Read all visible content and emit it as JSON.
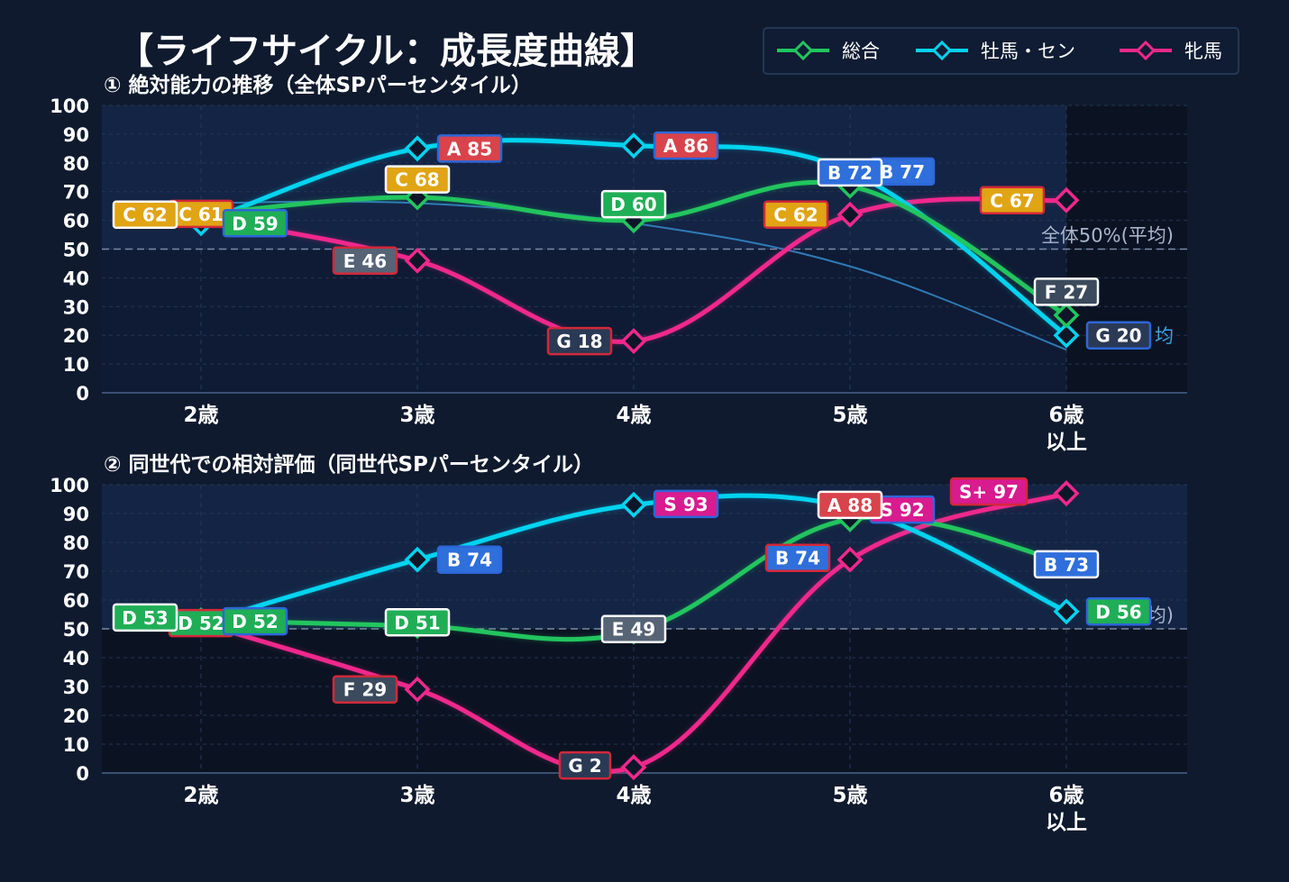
{
  "title": "【ライフサイクル：成長度曲線】",
  "legend": {
    "items": [
      {
        "name": "総合",
        "color": "#22c55e"
      },
      {
        "name": "牡馬・セン",
        "color": "#00d4f0"
      },
      {
        "name": "牝馬",
        "color": "#f0288c"
      }
    ]
  },
  "colors": {
    "background": "#0f1a2e",
    "plot_bg": "#0b1322",
    "plot_band": "#16284a",
    "overall": "#22c55e",
    "colt": "#00d4f0",
    "filly": "#f0288c",
    "rank_S": "#d81b8f",
    "rank_A": "#d9434b",
    "rank_B": "#2f6fdc",
    "rank_C": "#e0a414",
    "rank_D": "#1fae56",
    "rank_E": "#566476",
    "rank_F": "#3b4a5c",
    "rank_G": "#2a3a55"
  },
  "chart_data": [
    {
      "type": "line",
      "subtitle": "① 絶対能力の推移（全体SPパーセンタイル）",
      "categories": [
        "2歳",
        "3歳",
        "4歳",
        "5歳",
        "6歳\n以上"
      ],
      "ylim": [
        0,
        100
      ],
      "yticks": [
        0,
        10,
        20,
        30,
        40,
        50,
        60,
        70,
        80,
        90,
        100
      ],
      "reference_line": {
        "value": 50,
        "label": "全体50%(平均)"
      },
      "reference_curve": [
        66,
        66,
        59,
        44,
        15
      ],
      "partial_label": "均",
      "series": [
        {
          "name": "総合",
          "values": [
            62,
            68,
            60,
            72,
            27
          ],
          "labels": [
            "C 62",
            "C 68",
            "D 60",
            "B 72",
            "F 27"
          ]
        },
        {
          "name": "牡馬・セン",
          "values": [
            59,
            85,
            86,
            77,
            20
          ],
          "labels": [
            "D 59",
            "A 85",
            "A 86",
            "B 77",
            "G 20"
          ]
        },
        {
          "name": "牝馬",
          "values": [
            61,
            46,
            18,
            62,
            67
          ],
          "labels": [
            "C 61",
            "E 46",
            "G 18",
            "C 62",
            "C 67"
          ]
        }
      ]
    },
    {
      "type": "line",
      "subtitle": "② 同世代での相対評価（同世代SPパーセンタイル）",
      "categories": [
        "2歳",
        "3歳",
        "4歳",
        "5歳",
        "6歳\n以上"
      ],
      "ylim": [
        0,
        100
      ],
      "yticks": [
        0,
        10,
        20,
        30,
        40,
        50,
        60,
        70,
        80,
        90,
        100
      ],
      "reference_line": {
        "value": 50,
        "label": "P (平均)"
      },
      "series": [
        {
          "name": "総合",
          "values": [
            53,
            51,
            49,
            88,
            73
          ],
          "labels": [
            "D 53",
            "D 51",
            "E 49",
            "A 88",
            "B 73"
          ]
        },
        {
          "name": "牡馬・セン",
          "values": [
            52,
            74,
            93,
            92,
            56
          ],
          "labels": [
            "D 52",
            "B 74",
            "S 93",
            "S 92",
            "D 56"
          ]
        },
        {
          "name": "牝馬",
          "values": [
            52,
            29,
            2,
            74,
            97
          ],
          "labels": [
            "D 52",
            "F 29",
            "G 2",
            "B 74",
            "S+ 97"
          ]
        }
      ]
    }
  ]
}
